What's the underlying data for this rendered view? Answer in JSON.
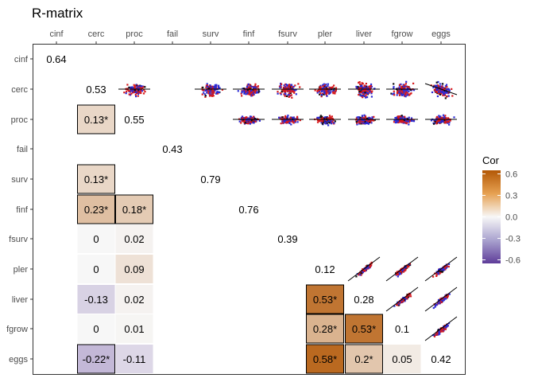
{
  "chart_data": {
    "type": "heatmap",
    "title": "R-matrix",
    "variables": [
      "cinf",
      "cerc",
      "proc",
      "fail",
      "surv",
      "finf",
      "fsurv",
      "pler",
      "liver",
      "fgrow",
      "eggs"
    ],
    "diagonal": {
      "cinf": "0.64",
      "cerc": "0.53",
      "proc": "0.55",
      "fail": "0.43",
      "surv": "0.79",
      "finf": "0.76",
      "fsurv": "0.39",
      "pler": "0.12",
      "liver": "0.28",
      "fgrow": "0.1",
      "eggs": "0.42"
    },
    "lower_cells": [
      {
        "row": "proc",
        "col": "cerc",
        "value": 0.13,
        "label": "0.13*",
        "significant": true
      },
      {
        "row": "surv",
        "col": "cerc",
        "value": 0.13,
        "label": "0.13*",
        "significant": true
      },
      {
        "row": "finf",
        "col": "cerc",
        "value": 0.23,
        "label": "0.23*",
        "significant": true
      },
      {
        "row": "finf",
        "col": "proc",
        "value": 0.18,
        "label": "0.18*",
        "significant": true
      },
      {
        "row": "fsurv",
        "col": "cerc",
        "value": 0,
        "label": "0",
        "significant": false
      },
      {
        "row": "fsurv",
        "col": "proc",
        "value": 0.02,
        "label": "0.02",
        "significant": false
      },
      {
        "row": "pler",
        "col": "cerc",
        "value": 0,
        "label": "0",
        "significant": false
      },
      {
        "row": "pler",
        "col": "proc",
        "value": 0.09,
        "label": "0.09",
        "significant": false
      },
      {
        "row": "liver",
        "col": "cerc",
        "value": -0.13,
        "label": "-0.13",
        "significant": false
      },
      {
        "row": "liver",
        "col": "proc",
        "value": 0.02,
        "label": "0.02",
        "significant": false
      },
      {
        "row": "liver",
        "col": "pler",
        "value": 0.53,
        "label": "0.53*",
        "significant": true
      },
      {
        "row": "fgrow",
        "col": "cerc",
        "value": 0,
        "label": "0",
        "significant": false
      },
      {
        "row": "fgrow",
        "col": "proc",
        "value": 0.01,
        "label": "0.01",
        "significant": false
      },
      {
        "row": "fgrow",
        "col": "pler",
        "value": 0.28,
        "label": "0.28*",
        "significant": true
      },
      {
        "row": "fgrow",
        "col": "liver",
        "value": 0.53,
        "label": "0.53*",
        "significant": true
      },
      {
        "row": "eggs",
        "col": "cerc",
        "value": -0.22,
        "label": "-0.22*",
        "significant": true
      },
      {
        "row": "eggs",
        "col": "proc",
        "value": -0.11,
        "label": "-0.11",
        "significant": false
      },
      {
        "row": "eggs",
        "col": "pler",
        "value": 0.58,
        "label": "0.58*",
        "significant": true
      },
      {
        "row": "eggs",
        "col": "liver",
        "value": 0.2,
        "label": "0.2*",
        "significant": true
      },
      {
        "row": "eggs",
        "col": "fgrow",
        "value": 0.05,
        "label": "0.05",
        "significant": false
      }
    ],
    "upper_scatter_panels": [
      {
        "row": "cerc",
        "col": "proc",
        "trend": "flat"
      },
      {
        "row": "cerc",
        "col": "surv",
        "trend": "flat"
      },
      {
        "row": "cerc",
        "col": "finf",
        "trend": "flat"
      },
      {
        "row": "cerc",
        "col": "fsurv",
        "trend": "flat"
      },
      {
        "row": "cerc",
        "col": "pler",
        "trend": "flat"
      },
      {
        "row": "cerc",
        "col": "liver",
        "trend": "flat"
      },
      {
        "row": "cerc",
        "col": "fgrow",
        "trend": "flat"
      },
      {
        "row": "cerc",
        "col": "eggs",
        "trend": "negative"
      },
      {
        "row": "proc",
        "col": "finf",
        "trend": "flat"
      },
      {
        "row": "proc",
        "col": "fsurv",
        "trend": "flat"
      },
      {
        "row": "proc",
        "col": "pler",
        "trend": "flat"
      },
      {
        "row": "proc",
        "col": "liver",
        "trend": "flat"
      },
      {
        "row": "proc",
        "col": "fgrow",
        "trend": "flat"
      },
      {
        "row": "proc",
        "col": "eggs",
        "trend": "flat"
      },
      {
        "row": "pler",
        "col": "liver",
        "trend": "positive"
      },
      {
        "row": "pler",
        "col": "fgrow",
        "trend": "positive"
      },
      {
        "row": "pler",
        "col": "eggs",
        "trend": "positive"
      },
      {
        "row": "liver",
        "col": "fgrow",
        "trend": "positive"
      },
      {
        "row": "liver",
        "col": "eggs",
        "trend": "positive"
      },
      {
        "row": "fgrow",
        "col": "eggs",
        "trend": "positive"
      }
    ],
    "point_colors": [
      "#d7191c",
      "#2b2bd6",
      "#111111"
    ],
    "legend": {
      "title": "Cor",
      "ticks": [
        "0.6",
        "0.3",
        "0.0",
        "-0.3",
        "-0.6"
      ],
      "tick_values": [
        0.6,
        0.3,
        0.0,
        -0.3,
        -0.6
      ],
      "range": [
        -0.65,
        0.65
      ],
      "placement": "right"
    },
    "color_scale": {
      "negative": "#5e3c99",
      "mid": "#f7f7f7",
      "positive": "#b35806"
    }
  }
}
